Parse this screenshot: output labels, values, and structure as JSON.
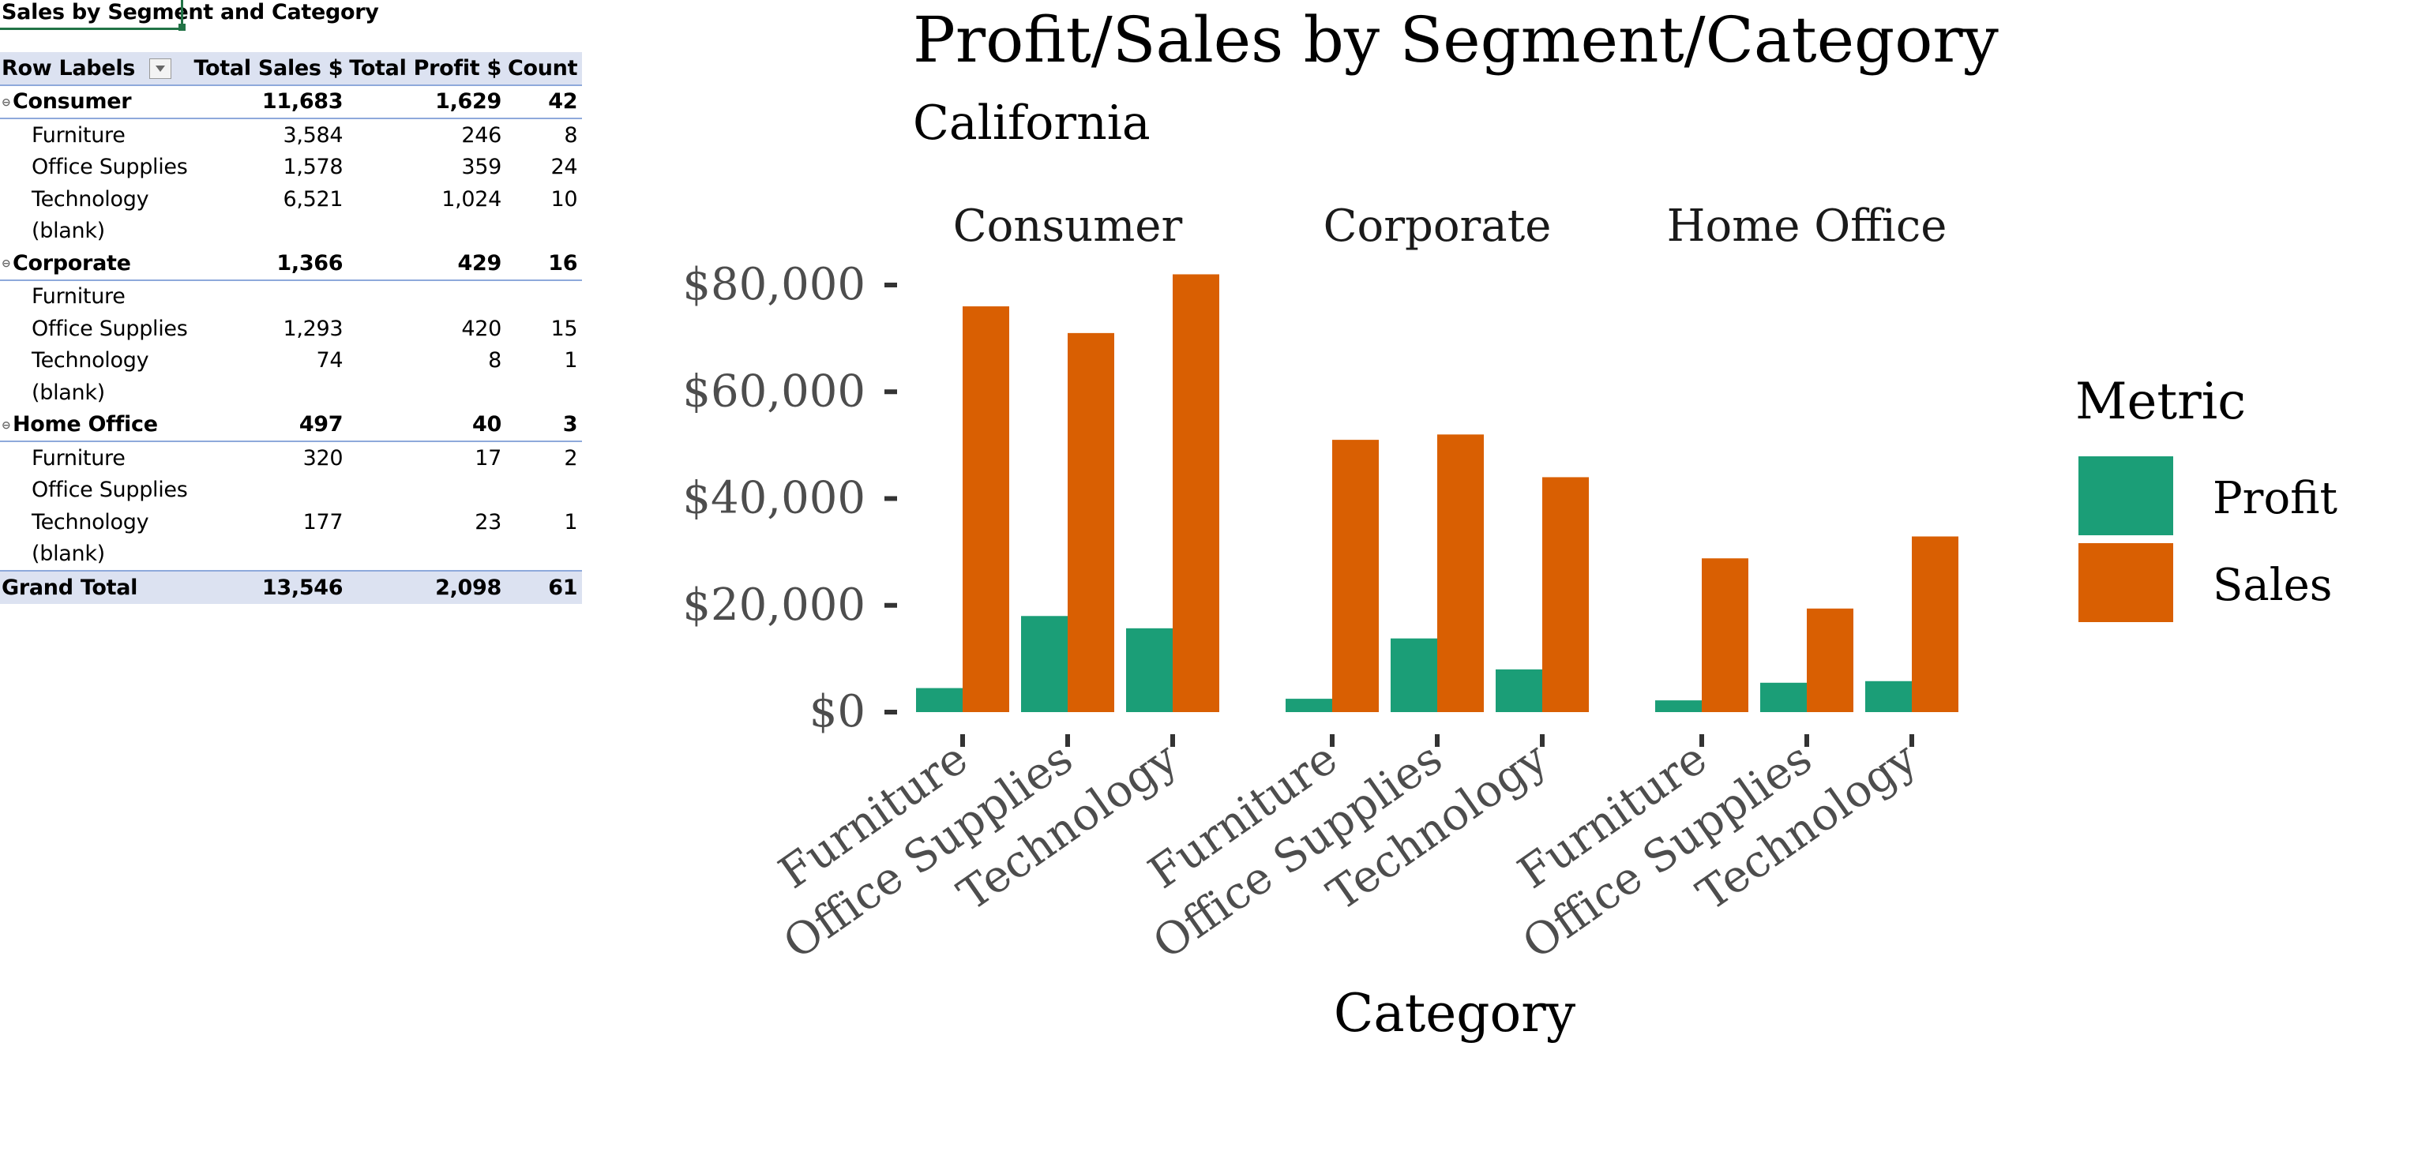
{
  "pivot": {
    "title": "Sales by Segment and Category",
    "headers": [
      "Row Labels",
      "Total Sales $",
      "Total Profit $",
      "Count"
    ],
    "rows": [
      {
        "type": "group",
        "label": "Consumer",
        "sales": "11,683",
        "profit": "1,629",
        "count": "42"
      },
      {
        "type": "sub",
        "label": "Furniture",
        "sales": "3,584",
        "profit": "246",
        "count": "8"
      },
      {
        "type": "sub",
        "label": "Office Supplies",
        "sales": "1,578",
        "profit": "359",
        "count": "24"
      },
      {
        "type": "sub",
        "label": "Technology",
        "sales": "6,521",
        "profit": "1,024",
        "count": "10"
      },
      {
        "type": "sub",
        "label": "(blank)",
        "sales": "",
        "profit": "",
        "count": ""
      },
      {
        "type": "group",
        "label": "Corporate",
        "sales": "1,366",
        "profit": "429",
        "count": "16"
      },
      {
        "type": "sub",
        "label": "Furniture",
        "sales": "",
        "profit": "",
        "count": ""
      },
      {
        "type": "sub",
        "label": "Office Supplies",
        "sales": "1,293",
        "profit": "420",
        "count": "15"
      },
      {
        "type": "sub",
        "label": "Technology",
        "sales": "74",
        "profit": "8",
        "count": "1"
      },
      {
        "type": "sub",
        "label": "(blank)",
        "sales": "",
        "profit": "",
        "count": ""
      },
      {
        "type": "group",
        "label": "Home Office",
        "sales": "497",
        "profit": "40",
        "count": "3"
      },
      {
        "type": "sub",
        "label": "Furniture",
        "sales": "320",
        "profit": "17",
        "count": "2"
      },
      {
        "type": "sub",
        "label": "Office Supplies",
        "sales": "",
        "profit": "",
        "count": ""
      },
      {
        "type": "sub",
        "label": "Technology",
        "sales": "177",
        "profit": "23",
        "count": "1"
      },
      {
        "type": "sub",
        "label": "(blank)",
        "sales": "",
        "profit": "",
        "count": ""
      }
    ],
    "total": {
      "label": "Grand Total",
      "sales": "13,546",
      "profit": "2,098",
      "count": "61"
    }
  },
  "chart_data": {
    "type": "bar",
    "title": "Profit/Sales by Segment/Category",
    "subtitle": "California",
    "xlabel": "Category",
    "ylabel": "",
    "facets": [
      "Consumer",
      "Corporate",
      "Home Office"
    ],
    "categories": [
      "Furniture",
      "Office Supplies",
      "Technology"
    ],
    "ylim": [
      0,
      83000
    ],
    "yticks": [
      0,
      20000,
      40000,
      60000,
      80000
    ],
    "ytick_labels": [
      "$0",
      "$20,000",
      "$40,000",
      "$60,000",
      "$80,000"
    ],
    "legend_title": "Metric",
    "legend_position": "right",
    "grid": false,
    "series": [
      {
        "name": "Profit",
        "color": "#1b9e77",
        "values": [
          [
            4500,
            18000,
            15700
          ],
          [
            2500,
            13800,
            8000
          ],
          [
            2200,
            5500,
            5800
          ]
        ]
      },
      {
        "name": "Sales",
        "color": "#d95f02",
        "values": [
          [
            76000,
            71000,
            82000
          ],
          [
            51000,
            52000,
            44000
          ],
          [
            28800,
            19400,
            32900
          ]
        ]
      }
    ]
  }
}
